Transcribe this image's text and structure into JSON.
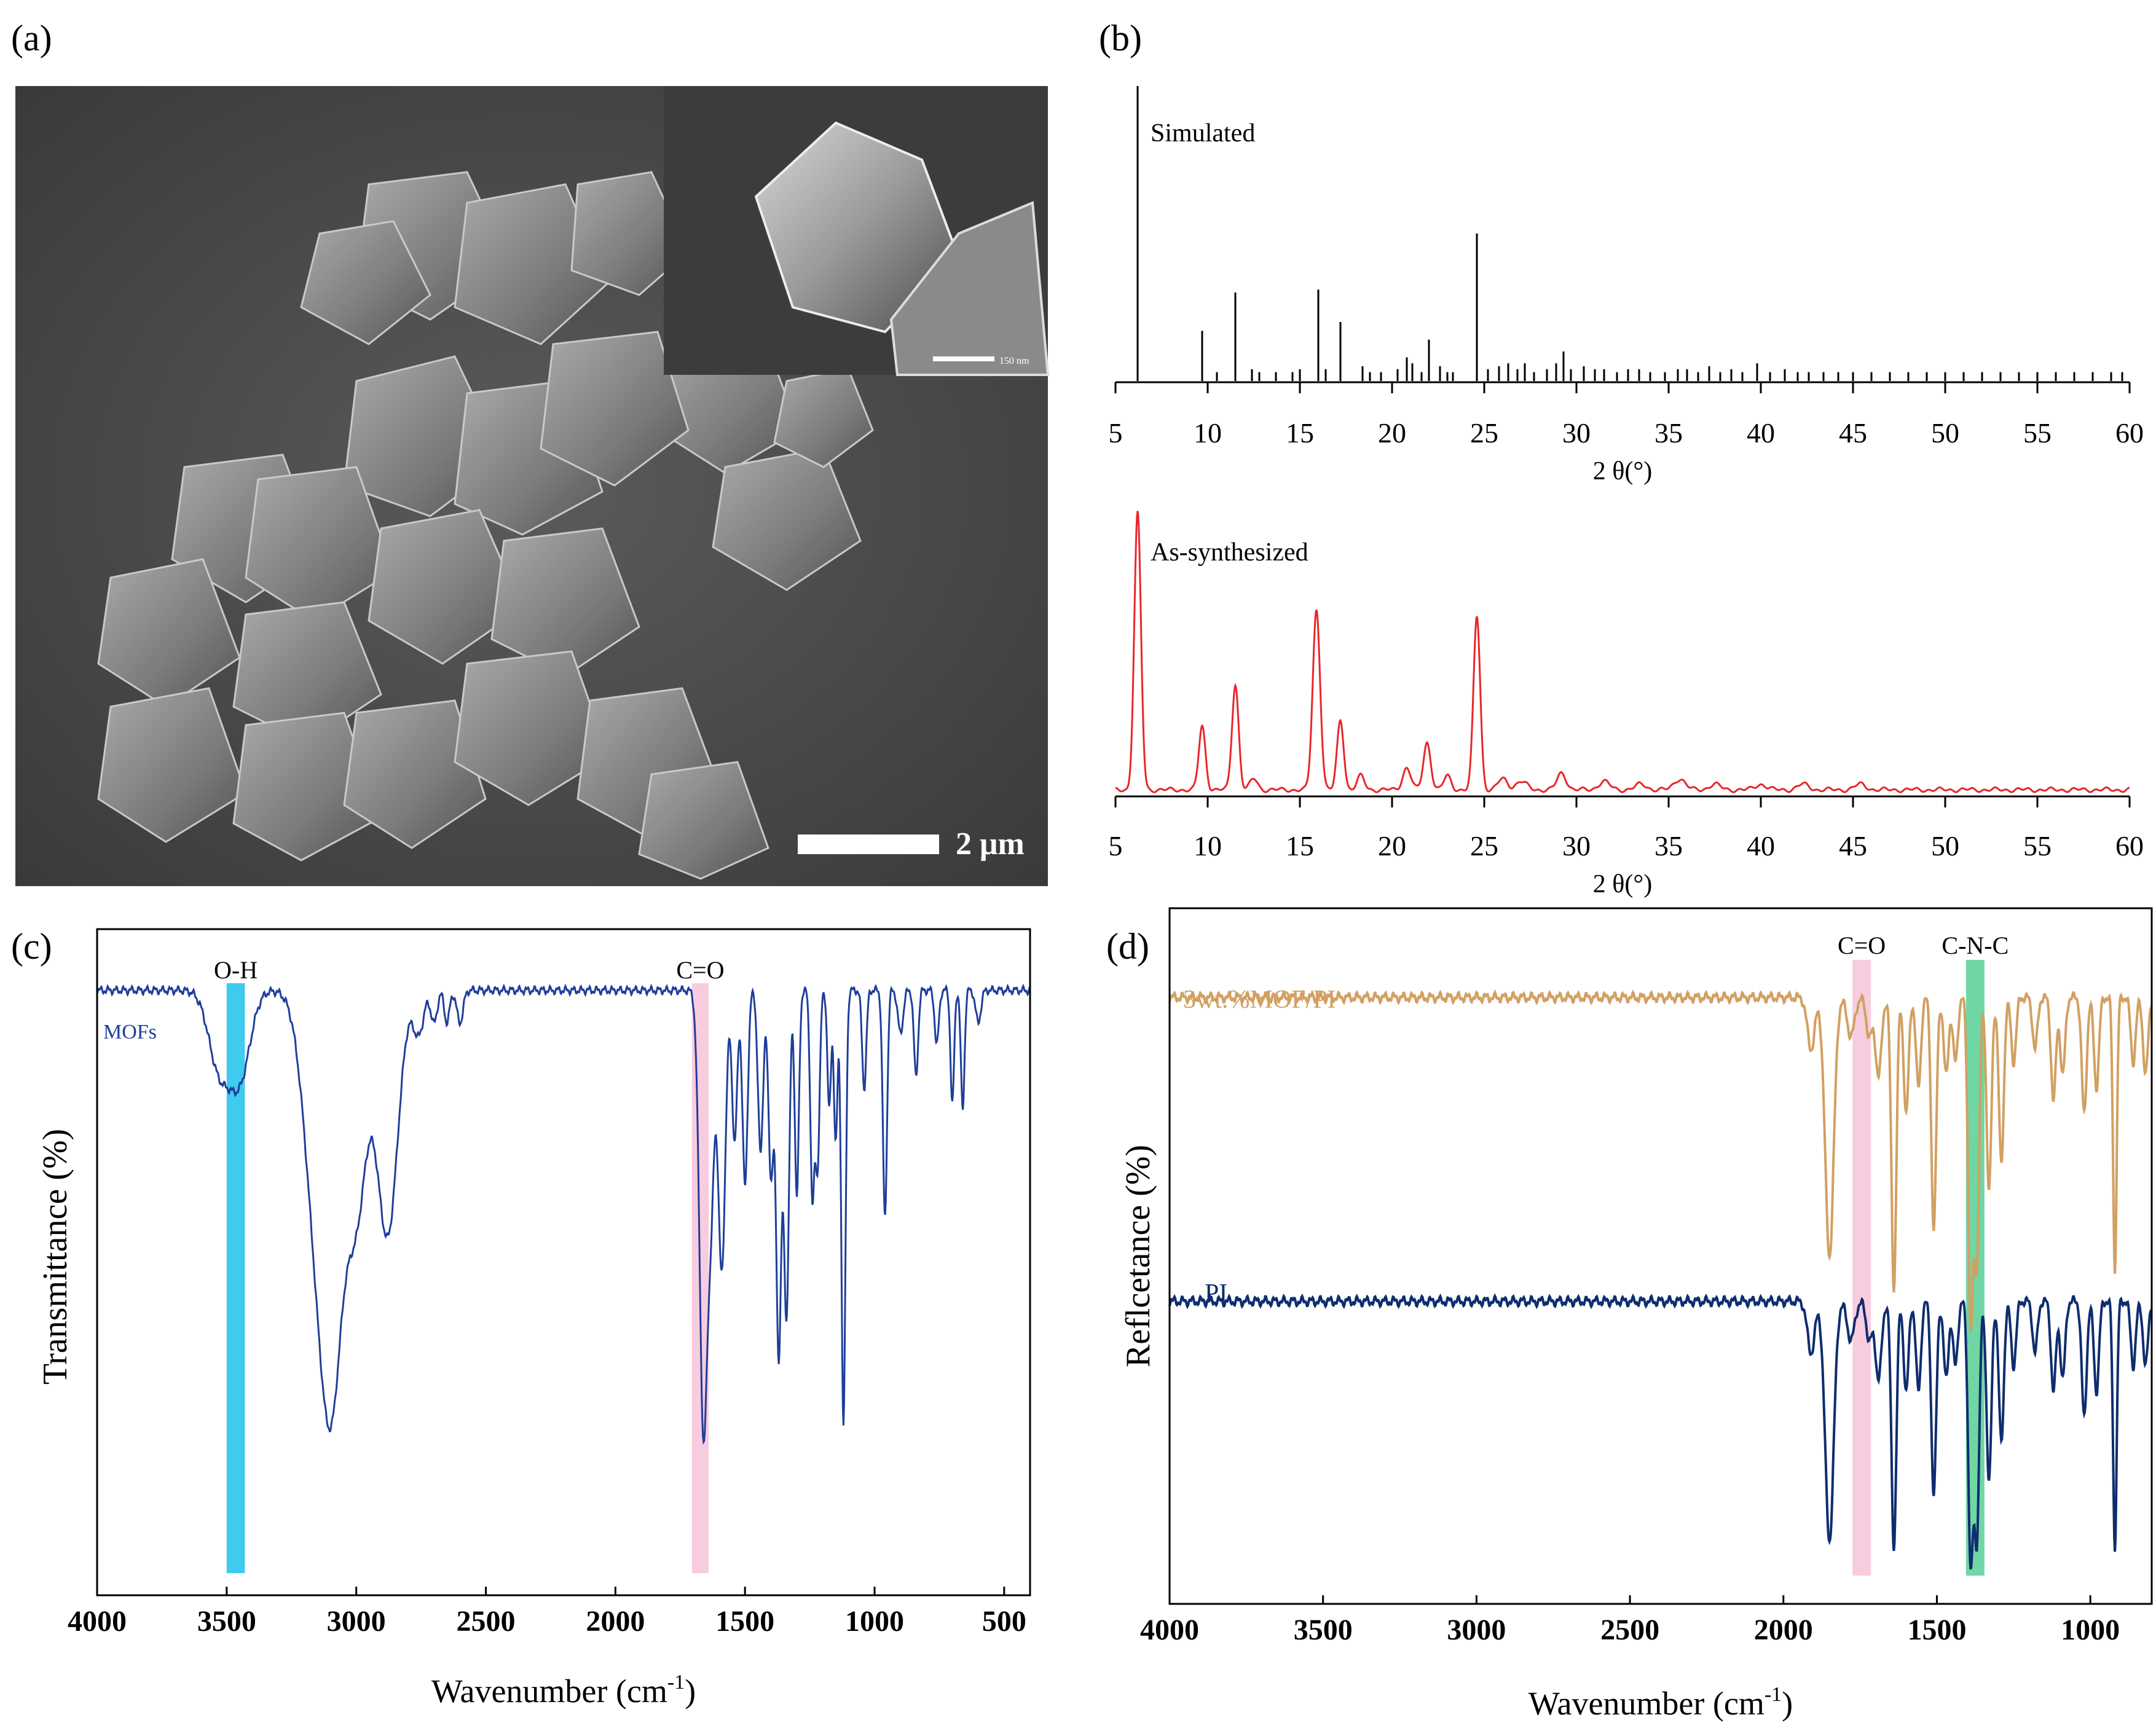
{
  "figure": {
    "panel_labels": [
      "(a)",
      "(b)",
      "(c)",
      "(d)"
    ]
  },
  "sem": {
    "scale_bar_label": "2 μm",
    "inset_scale_label": "150 nm"
  },
  "colors": {
    "xrd_simulated": "#000000",
    "xrd_synth": "#e8262a",
    "ftir_mofs": "#1f3e9a",
    "ftir_composite": "#d2a062",
    "ftir_pi": "#0e2d6e",
    "band_oh": "#29c5ec",
    "band_co": "#f7c6dc",
    "band_cnc": "#5fd29a"
  },
  "chart_data": [
    {
      "panel": "b-top",
      "type": "bar",
      "label": "Simulated",
      "xlabel": "2 θ(°)",
      "xlim": [
        5,
        60
      ],
      "xticks": [
        5,
        10,
        15,
        20,
        25,
        30,
        35,
        40,
        45,
        50,
        55,
        60
      ],
      "ylim": [
        0,
        100
      ],
      "peaks": [
        [
          6.2,
          100
        ],
        [
          9.7,
          17
        ],
        [
          10.5,
          3
        ],
        [
          11.5,
          30
        ],
        [
          12.4,
          4
        ],
        [
          12.8,
          3
        ],
        [
          13.7,
          3
        ],
        [
          14.6,
          3
        ],
        [
          15.0,
          4
        ],
        [
          16.0,
          31
        ],
        [
          16.4,
          4
        ],
        [
          17.2,
          20
        ],
        [
          18.4,
          5
        ],
        [
          18.8,
          3
        ],
        [
          19.4,
          3
        ],
        [
          20.3,
          4
        ],
        [
          20.8,
          8
        ],
        [
          21.1,
          6
        ],
        [
          21.6,
          3
        ],
        [
          22.0,
          14
        ],
        [
          22.6,
          5
        ],
        [
          23.0,
          3
        ],
        [
          23.3,
          3
        ],
        [
          24.6,
          50
        ],
        [
          25.2,
          4
        ],
        [
          25.8,
          5
        ],
        [
          26.3,
          6
        ],
        [
          26.8,
          4
        ],
        [
          27.2,
          6
        ],
        [
          27.7,
          3
        ],
        [
          28.4,
          4
        ],
        [
          28.9,
          6
        ],
        [
          29.3,
          10
        ],
        [
          29.7,
          4
        ],
        [
          30.4,
          5
        ],
        [
          31.0,
          4
        ],
        [
          31.5,
          4
        ],
        [
          32.2,
          3
        ],
        [
          32.8,
          4
        ],
        [
          33.4,
          4
        ],
        [
          34.0,
          3
        ],
        [
          34.8,
          3
        ],
        [
          35.5,
          4
        ],
        [
          36.0,
          4
        ],
        [
          36.6,
          3
        ],
        [
          37.2,
          5
        ],
        [
          37.8,
          3
        ],
        [
          38.4,
          4
        ],
        [
          39.0,
          3
        ],
        [
          39.8,
          6
        ],
        [
          40.5,
          3
        ],
        [
          41.3,
          4
        ],
        [
          42.0,
          3
        ],
        [
          42.6,
          3
        ],
        [
          43.4,
          3
        ],
        [
          44.2,
          3
        ],
        [
          45.0,
          3
        ],
        [
          46.0,
          3
        ],
        [
          47.0,
          3
        ],
        [
          48.0,
          3
        ],
        [
          49.0,
          3
        ],
        [
          50.0,
          3
        ],
        [
          51.0,
          3
        ],
        [
          52.0,
          3
        ],
        [
          53.0,
          3
        ],
        [
          54.0,
          3
        ],
        [
          55.0,
          3
        ],
        [
          56.0,
          3
        ],
        [
          57.0,
          3
        ],
        [
          58.0,
          3
        ],
        [
          59.0,
          3
        ],
        [
          59.6,
          3
        ]
      ]
    },
    {
      "panel": "b-bottom",
      "type": "line",
      "label": "As-synthesized",
      "xlabel": "2 θ(°)",
      "xlim": [
        5,
        60
      ],
      "xticks": [
        5,
        10,
        15,
        20,
        25,
        30,
        35,
        40,
        45,
        50,
        55,
        60
      ],
      "ylim": [
        0,
        100
      ],
      "baseline": 1.5,
      "peaks": [
        [
          6.2,
          100,
          0.18
        ],
        [
          9.7,
          23,
          0.18
        ],
        [
          11.5,
          38,
          0.18
        ],
        [
          12.5,
          4,
          0.2
        ],
        [
          15.9,
          65,
          0.2
        ],
        [
          17.2,
          25,
          0.18
        ],
        [
          18.3,
          5,
          0.2
        ],
        [
          20.8,
          8,
          0.22
        ],
        [
          21.9,
          17,
          0.2
        ],
        [
          23.0,
          5,
          0.2
        ],
        [
          24.6,
          63,
          0.18
        ],
        [
          26.0,
          4,
          0.25
        ],
        [
          27.0,
          3,
          0.3
        ],
        [
          29.2,
          6,
          0.25
        ],
        [
          31.5,
          3,
          0.3
        ],
        [
          33.5,
          2,
          0.3
        ],
        [
          35.6,
          4,
          0.3
        ],
        [
          37.5,
          2,
          0.3
        ],
        [
          40.0,
          2,
          0.3
        ],
        [
          42.3,
          2,
          0.3
        ],
        [
          45.4,
          2,
          0.3
        ]
      ]
    },
    {
      "panel": "c",
      "type": "line",
      "xlabel": "Wavenumber (cm",
      "xlabel_sup": "-1",
      "xlabel_close": ")",
      "ylabel": "Transmittance (%)",
      "xlim": [
        4000,
        400
      ],
      "xticks": [
        4000,
        3500,
        3000,
        2500,
        2000,
        1500,
        1000,
        500
      ],
      "ylim": [
        0,
        100
      ],
      "series": [
        {
          "name": "MOFs",
          "baseline": 91,
          "bands": [
            [
              3530,
              14,
              40
            ],
            [
              3450,
              16,
              40
            ],
            [
              3150,
              42,
              50
            ],
            [
              3090,
              55,
              40
            ],
            [
              3000,
              40,
              40
            ],
            [
              2880,
              45,
              40
            ],
            [
              2760,
              8,
              20
            ],
            [
              2700,
              6,
              12
            ],
            [
              2650,
              6,
              10
            ],
            [
              2600,
              6,
              12
            ],
            [
              1660,
              82,
              15
            ],
            [
              1630,
              34,
              12
            ],
            [
              1590,
              52,
              14
            ],
            [
              1540,
              28,
              10
            ],
            [
              1500,
              36,
              10
            ],
            [
              1440,
              30,
              10
            ],
            [
              1400,
              34,
              10
            ],
            [
              1370,
              67,
              10
            ],
            [
              1340,
              60,
              10
            ],
            [
              1300,
              38,
              8
            ],
            [
              1240,
              38,
              8
            ],
            [
              1220,
              32,
              8
            ],
            [
              1175,
              22,
              7
            ],
            [
              1150,
              28,
              7
            ],
            [
              1120,
              80,
              8
            ],
            [
              1040,
              18,
              8
            ],
            [
              960,
              42,
              8
            ],
            [
              900,
              8,
              10
            ],
            [
              840,
              16,
              8
            ],
            [
              760,
              10,
              8
            ],
            [
              700,
              21,
              7
            ],
            [
              660,
              22,
              7
            ],
            [
              600,
              6,
              10
            ]
          ]
        }
      ],
      "annotations": [
        {
          "label": "O-H",
          "from": 3500,
          "to": 3430
        },
        {
          "label": "C=O",
          "from": 1705,
          "to": 1640
        }
      ]
    },
    {
      "panel": "d",
      "type": "line",
      "xlabel": "Wavenumber (cm",
      "xlabel_sup": "-1",
      "xlabel_close": ")",
      "ylabel": "Reflcetance (%)",
      "xlim": [
        4000,
        800
      ],
      "xticks": [
        4000,
        3500,
        3000,
        2500,
        2000,
        1500,
        1000
      ],
      "ylim": [
        0,
        100
      ],
      "series": [
        {
          "name": "3wt.%MOF/PI",
          "baseline": 90,
          "bands": [
            [
              1910,
              8,
              12
            ],
            [
              1850,
              40,
              14
            ],
            [
              1780,
              6,
              12
            ],
            [
              1720,
              6,
              10
            ],
            [
              1690,
              12,
              10
            ],
            [
              1640,
              45,
              8
            ],
            [
              1600,
              18,
              8
            ],
            [
              1560,
              14,
              8
            ],
            [
              1510,
              36,
              8
            ],
            [
              1470,
              12,
              8
            ],
            [
              1440,
              10,
              8
            ],
            [
              1390,
              50,
              8
            ],
            [
              1370,
              40,
              8
            ],
            [
              1330,
              30,
              8
            ],
            [
              1290,
              26,
              8
            ],
            [
              1250,
              10,
              8
            ],
            [
              1180,
              8,
              8
            ],
            [
              1120,
              16,
              8
            ],
            [
              1090,
              12,
              8
            ],
            [
              1020,
              18,
              8
            ],
            [
              980,
              14,
              8
            ],
            [
              920,
              42,
              6
            ],
            [
              860,
              10,
              8
            ],
            [
              820,
              12,
              8
            ]
          ]
        },
        {
          "name": "PI",
          "baseline": 43,
          "bands": [
            [
              1910,
              8,
              12
            ],
            [
              1850,
              37,
              14
            ],
            [
              1780,
              6,
              12
            ],
            [
              1720,
              6,
              10
            ],
            [
              1690,
              12,
              10
            ],
            [
              1640,
              38,
              8
            ],
            [
              1600,
              14,
              8
            ],
            [
              1560,
              14,
              8
            ],
            [
              1510,
              30,
              8
            ],
            [
              1470,
              12,
              8
            ],
            [
              1440,
              10,
              8
            ],
            [
              1390,
              40,
              8
            ],
            [
              1370,
              36,
              8
            ],
            [
              1330,
              28,
              8
            ],
            [
              1290,
              22,
              8
            ],
            [
              1250,
              10,
              8
            ],
            [
              1180,
              8,
              8
            ],
            [
              1120,
              14,
              8
            ],
            [
              1090,
              12,
              8
            ],
            [
              1020,
              18,
              8
            ],
            [
              980,
              14,
              8
            ],
            [
              920,
              38,
              6
            ],
            [
              860,
              10,
              8
            ],
            [
              820,
              10,
              8
            ]
          ]
        }
      ],
      "annotations": [
        {
          "label": "C=O",
          "from": 1775,
          "to": 1715
        },
        {
          "label": "C-N-C",
          "from": 1405,
          "to": 1345
        }
      ]
    }
  ]
}
